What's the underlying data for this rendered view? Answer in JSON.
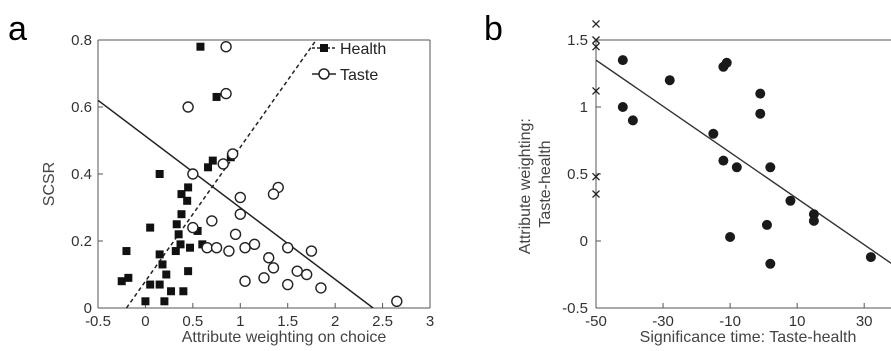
{
  "chart_data": [
    {
      "panel": "a",
      "type": "scatter",
      "xlabel": "Attribute weighting on choice",
      "ylabel": "SCSR",
      "xlim": [
        -0.5,
        3
      ],
      "ylim": [
        0,
        0.8
      ],
      "xticks": [
        "-0.5",
        "0",
        "0.5",
        "1",
        "1.5",
        "2",
        "2.5",
        "3"
      ],
      "yticks": [
        "0",
        "0.2",
        "0.4",
        "0.6",
        "0.8"
      ],
      "legend": "top-right",
      "grid": false,
      "series": [
        {
          "name": "Health",
          "marker": "filled-square",
          "line": "dashed",
          "fit": [
            [
              -0.2,
              0
            ],
            [
              1.8,
              0.8
            ]
          ],
          "points": [
            [
              0.58,
              0.78
            ],
            [
              0.45,
              0.6
            ],
            [
              0.75,
              0.63
            ],
            [
              0.9,
              0.45
            ],
            [
              0.15,
              0.4
            ],
            [
              0.38,
              0.34
            ],
            [
              0.45,
              0.36
            ],
            [
              0.44,
              0.32
            ],
            [
              0.38,
              0.28
            ],
            [
              0.33,
              0.25
            ],
            [
              0.35,
              0.22
            ],
            [
              0.55,
              0.23
            ],
            [
              0.37,
              0.19
            ],
            [
              0.47,
              0.18
            ],
            [
              0.32,
              0.17
            ],
            [
              0.6,
              0.19
            ],
            [
              0.05,
              0.24
            ],
            [
              -0.2,
              0.17
            ],
            [
              0.15,
              0.16
            ],
            [
              0.18,
              0.13
            ],
            [
              0.22,
              0.1
            ],
            [
              0.45,
              0.11
            ],
            [
              0.05,
              0.07
            ],
            [
              0.15,
              0.07
            ],
            [
              0.27,
              0.05
            ],
            [
              0.4,
              0.05
            ],
            [
              -0.25,
              0.08
            ],
            [
              -0.18,
              0.09
            ],
            [
              0.0,
              0.02
            ],
            [
              0.2,
              0.02
            ],
            [
              0.66,
              0.42
            ],
            [
              0.71,
              0.44
            ]
          ]
        },
        {
          "name": "Taste",
          "marker": "open-circle",
          "line": "solid",
          "fit": [
            [
              -0.5,
              0.62
            ],
            [
              2.4,
              0
            ]
          ],
          "points": [
            [
              0.85,
              0.78
            ],
            [
              0.85,
              0.64
            ],
            [
              0.45,
              0.6
            ],
            [
              0.92,
              0.46
            ],
            [
              0.82,
              0.43
            ],
            [
              0.5,
              0.4
            ],
            [
              1.0,
              0.33
            ],
            [
              1.0,
              0.28
            ],
            [
              1.4,
              0.36
            ],
            [
              1.35,
              0.34
            ],
            [
              0.7,
              0.26
            ],
            [
              0.5,
              0.24
            ],
            [
              0.95,
              0.22
            ],
            [
              0.65,
              0.18
            ],
            [
              0.75,
              0.18
            ],
            [
              1.15,
              0.19
            ],
            [
              0.88,
              0.17
            ],
            [
              1.05,
              0.18
            ],
            [
              1.3,
              0.15
            ],
            [
              1.5,
              0.18
            ],
            [
              1.75,
              0.17
            ],
            [
              1.35,
              0.12
            ],
            [
              1.6,
              0.11
            ],
            [
              1.7,
              0.1
            ],
            [
              1.25,
              0.09
            ],
            [
              1.05,
              0.08
            ],
            [
              1.5,
              0.07
            ],
            [
              1.85,
              0.06
            ],
            [
              2.65,
              0.02
            ]
          ]
        }
      ]
    },
    {
      "panel": "b",
      "type": "scatter",
      "xlabel": "Significance time: Taste-health",
      "ylabel": "Attribute weighting:\nTaste-health",
      "ylabel_lines": [
        "Attribute weighting:",
        "Taste-health"
      ],
      "xlim": [
        -50,
        38
      ],
      "ylim": [
        -0.5,
        1.5
      ],
      "xticks": [
        "-50",
        "-30",
        "-10",
        "10",
        "30"
      ],
      "yticks": [
        "-0.5",
        "0",
        "0.5",
        "1",
        "1.5"
      ],
      "grid": false,
      "fit": [
        [
          -50,
          1.35
        ],
        [
          40,
          -0.2
        ]
      ],
      "points": [
        [
          -42,
          1.35
        ],
        [
          -42,
          1.0
        ],
        [
          -39,
          0.9
        ],
        [
          -28,
          1.2
        ],
        [
          -15,
          0.8
        ],
        [
          -12,
          1.3
        ],
        [
          -11,
          1.33
        ],
        [
          -12,
          0.6
        ],
        [
          -8,
          0.55
        ],
        [
          -10,
          0.03
        ],
        [
          -1,
          1.1
        ],
        [
          -1,
          0.95
        ],
        [
          2,
          0.55
        ],
        [
          1,
          0.12
        ],
        [
          2,
          -0.17
        ],
        [
          8,
          0.3
        ],
        [
          15,
          0.2
        ],
        [
          15,
          0.15
        ],
        [
          32,
          -0.12
        ]
      ],
      "cross_points": [
        [
          -50,
          1.62
        ],
        [
          -50,
          1.5
        ],
        [
          -50,
          1.45
        ],
        [
          -50,
          1.12
        ],
        [
          -50,
          0.48
        ],
        [
          -50,
          0.35
        ]
      ]
    }
  ]
}
